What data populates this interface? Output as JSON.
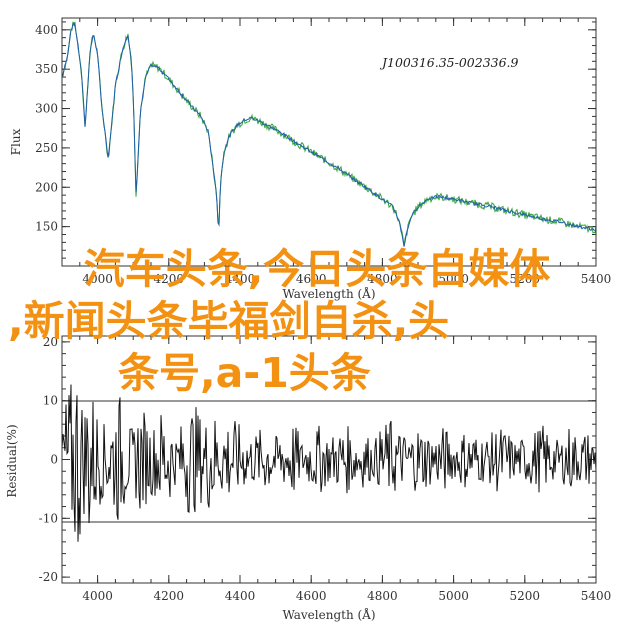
{
  "chart_data": [
    {
      "type": "line",
      "title": "",
      "annotation": "J100316.35-002336.9",
      "xlabel": "Wavelength (Å)",
      "ylabel": "Flux",
      "xlim": [
        3900,
        5400
      ],
      "ylim": [
        100,
        415
      ],
      "x_ticks": [
        4000,
        4200,
        4400,
        4600,
        4800,
        5000,
        5200,
        5400
      ],
      "y_ticks": [
        150,
        200,
        250,
        300,
        350,
        400
      ],
      "colors": {
        "observed": "#35a33a",
        "model": "#1f5fa8",
        "axes": "#333333"
      },
      "series": [
        {
          "x": [
            3900,
            3915,
            3925,
            3935,
            3945,
            3955,
            3965,
            3978,
            3988,
            4000,
            4010,
            4030,
            4050,
            4070,
            4085,
            4095,
            4101,
            4108,
            4120,
            4135,
            4150,
            4170,
            4190,
            4210,
            4230,
            4250,
            4270,
            4290,
            4310,
            4325,
            4335,
            4340,
            4345,
            4355,
            4370,
            4390,
            4410,
            4430,
            4450,
            4480,
            4520,
            4560,
            4600,
            4640,
            4680,
            4720,
            4760,
            4800,
            4830,
            4845,
            4855,
            4861,
            4867,
            4880,
            4900,
            4930,
            4960,
            5000,
            5050,
            5100,
            5150,
            5200,
            5250,
            5300,
            5350,
            5400
          ],
          "y": [
            340,
            365,
            400,
            410,
            380,
            345,
            275,
            370,
            395,
            370,
            310,
            235,
            330,
            375,
            395,
            360,
            305,
            190,
            295,
            340,
            355,
            352,
            343,
            332,
            321,
            310,
            300,
            290,
            272,
            225,
            185,
            140,
            205,
            245,
            265,
            278,
            285,
            288,
            285,
            278,
            268,
            256,
            245,
            234,
            223,
            210,
            198,
            185,
            175,
            160,
            140,
            125,
            140,
            162,
            175,
            186,
            188,
            185,
            180,
            176,
            170,
            165,
            160,
            156,
            150,
            146
          ]
        }
      ]
    },
    {
      "type": "line",
      "title": "",
      "xlabel": "Wavelength (Å)",
      "ylabel": "Residual(%)",
      "xlim": [
        3900,
        5400
      ],
      "ylim": [
        -21,
        21
      ],
      "x_ticks": [
        4000,
        4200,
        4400,
        4600,
        4800,
        5000,
        5200,
        5400
      ],
      "y_ticks": [
        -20,
        -10,
        0,
        10,
        20
      ],
      "reference_lines": [
        10,
        -10
      ],
      "colors": {
        "residual": "#111111",
        "axes": "#333333"
      },
      "series": [
        {
          "x": [
            3900,
            3915,
            3930,
            3945,
            3960,
            3975,
            3990,
            4005,
            4020,
            4040,
            4060,
            4080,
            4100,
            4120,
            4140,
            4160,
            4180,
            4200,
            4220,
            4240,
            4260,
            4280,
            4300,
            4320,
            4340,
            4360,
            4380,
            4400,
            4425,
            4450,
            4475,
            4500,
            4525,
            4550,
            4575,
            4600,
            4625,
            4650,
            4675,
            4700,
            4725,
            4750,
            4775,
            4800,
            4825,
            4850,
            4875,
            4900,
            4925,
            4950,
            4975,
            5000,
            5025,
            5050,
            5075,
            5100,
            5125,
            5150,
            5175,
            5200,
            5225,
            5250,
            5275,
            5300,
            5325,
            5350,
            5375,
            5400
          ],
          "y": [
            8,
            -12,
            14,
            -18,
            9,
            -15,
            11,
            -8,
            6,
            -9,
            12,
            -7,
            5,
            -10,
            7,
            -6,
            9,
            -8,
            4,
            -7,
            10,
            -9,
            6,
            -11,
            5,
            -8,
            7,
            -6,
            4,
            -5,
            6,
            -4,
            5,
            -7,
            3,
            -5,
            6,
            -4,
            5,
            -6,
            4,
            -5,
            3,
            -6,
            7,
            -5,
            4,
            -6,
            5,
            -4,
            6,
            -3,
            5,
            -5,
            4,
            -4,
            6,
            -5,
            3,
            -4,
            5,
            -6,
            4,
            -3,
            6,
            -4,
            5,
            -3
          ]
        }
      ]
    }
  ],
  "overlay": {
    "lines": [
      "汽车头条,今日头条自媒体",
      ",新闻头条毕福剑自杀,头",
      "条号,a-1头条"
    ]
  }
}
